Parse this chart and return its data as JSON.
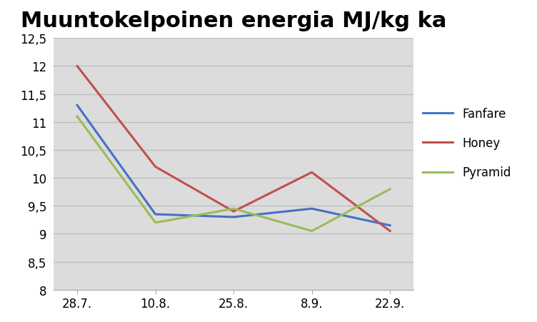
{
  "title": "Muuntokelpoinen energia MJ/kg ka",
  "x_labels": [
    "28.7.",
    "10.8.",
    "25.8.",
    "8.9.",
    "22.9."
  ],
  "series": [
    {
      "name": "Fanfare",
      "color": "#4472C4",
      "values": [
        11.3,
        9.35,
        9.3,
        9.45,
        9.15
      ]
    },
    {
      "name": "Honey",
      "color": "#C0504D",
      "values": [
        12.0,
        10.2,
        9.4,
        10.1,
        9.05
      ]
    },
    {
      "name": "Pyramid",
      "color": "#9BBB59",
      "values": [
        11.1,
        9.2,
        9.45,
        9.05,
        9.8
      ]
    }
  ],
  "ylim": [
    8,
    12.5
  ],
  "yticks": [
    8,
    8.5,
    9,
    9.5,
    10,
    10.5,
    11,
    11.5,
    12,
    12.5
  ],
  "plot_bg_color": "#DCDCDC",
  "fig_bg_color": "#FFFFFF",
  "title_fontsize": 22,
  "legend_fontsize": 12,
  "tick_fontsize": 12,
  "grid_color": "#BEBEBE",
  "grid_linewidth": 1.0
}
